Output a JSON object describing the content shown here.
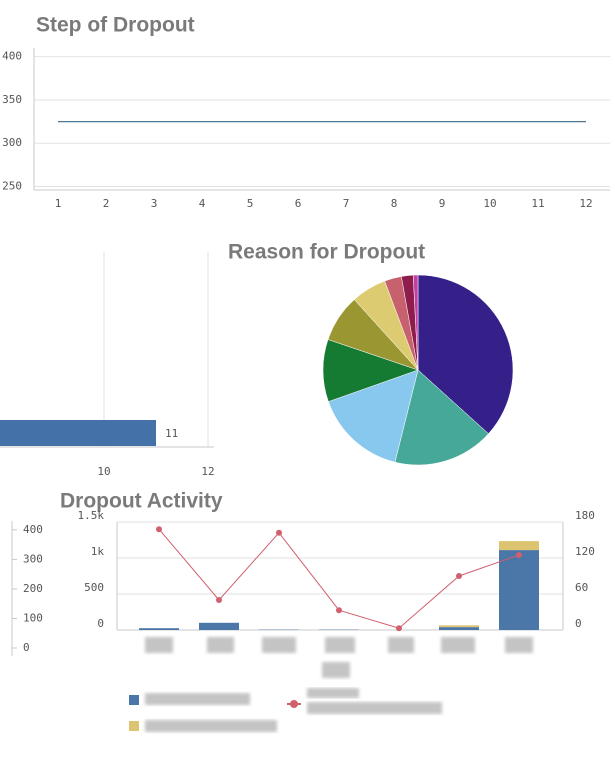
{
  "chart_data": [
    {
      "type": "line",
      "title": "Step of Dropout",
      "x": [
        1,
        2,
        3,
        4,
        5,
        6,
        7,
        8,
        9,
        10,
        11,
        12
      ],
      "series": [
        {
          "color": "#4a7895",
          "values": [
            325,
            325,
            325,
            325,
            325,
            325,
            325,
            325,
            325,
            325,
            325,
            325
          ]
        }
      ],
      "xlim": [
        0.5,
        12.5
      ],
      "xticks": [
        1,
        2,
        3,
        4,
        5,
        6,
        7,
        8,
        9,
        10,
        11,
        12
      ],
      "ylim": [
        246,
        410
      ],
      "yticks": [
        250,
        300,
        350,
        400
      ],
      "grid": true
    },
    {
      "type": "hbar",
      "categories": [
        null
      ],
      "values": [
        11
      ],
      "color": "#4472a8",
      "xlim": [
        8,
        12
      ],
      "xticks": [
        10,
        12
      ],
      "grid": true
    },
    {
      "type": "pie",
      "title": "Reason for Dropout",
      "values": [
        36.7,
        17.2,
        15.7,
        10.6,
        8.1,
        6,
        2.9,
        2,
        0.8
      ],
      "colors": [
        "#35208a",
        "#45a898",
        "#88c8ee",
        "#157a32",
        "#9a9632",
        "#dccb70",
        "#c8616e",
        "#8e1d4d",
        "#c040a0"
      ]
    },
    {
      "type": "axis",
      "ylim": [
        0,
        430
      ],
      "yticks": [
        0,
        100,
        200,
        300,
        400
      ]
    },
    {
      "type": "combo",
      "title": "Dropout Activity",
      "categories": [
        null,
        null,
        null,
        null,
        null,
        null,
        null
      ],
      "series": [
        {
          "color": "#4a76a8",
          "values": [
            25,
            100,
            5,
            5,
            0,
            40,
            1110
          ]
        },
        {
          "color": "#dcc470",
          "values": [
            0,
            0,
            0,
            0,
            0,
            25,
            125
          ]
        },
        {
          "color": "#d0606e",
          "axis": "y2",
          "values": [
            168,
            50,
            162,
            33,
            3,
            90,
            125
          ]
        }
      ],
      "ylim": [
        0,
        1500
      ],
      "yticks": [
        0,
        500,
        {
          "value": 1000,
          "label": "1k"
        },
        {
          "value": 1500,
          "label": "1.5k"
        }
      ],
      "y2lim": [
        0,
        180
      ],
      "y2ticks": [
        0,
        60,
        120,
        180
      ],
      "grid": true
    }
  ]
}
